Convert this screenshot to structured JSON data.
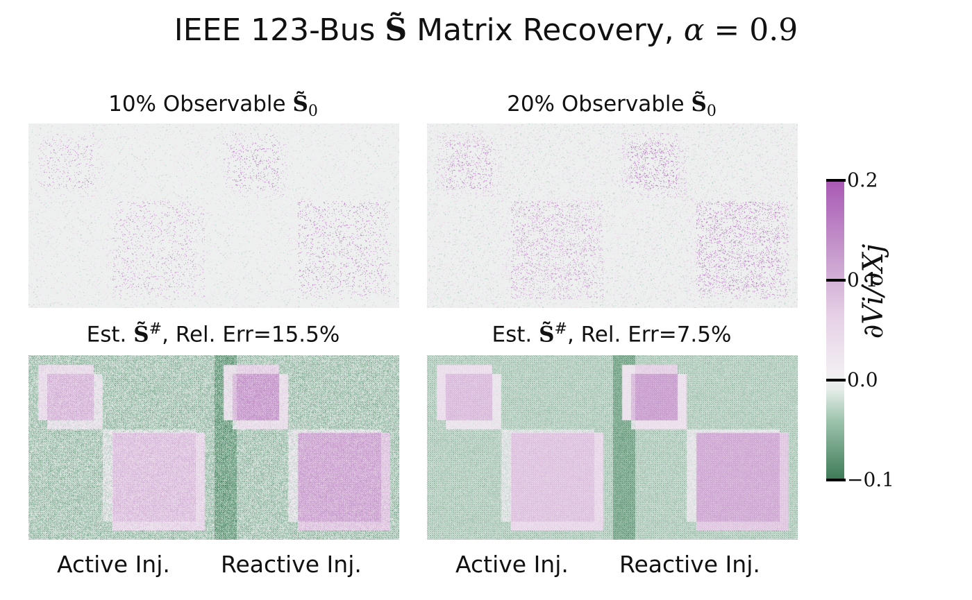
{
  "figure": {
    "title_prefix": "IEEE 123-Bus ",
    "title_symbol": "S̃",
    "title_middle": " Matrix Recovery, ",
    "title_var": "α",
    "title_eq": " = 0.9"
  },
  "panels": {
    "top_left_title": {
      "text": "10% Observable ",
      "sym": "S̃",
      "sub": "0"
    },
    "top_right_title": {
      "text": "20% Observable ",
      "sym": "S̃",
      "sub": "0"
    },
    "bottom_left_title": {
      "pre": "Est. ",
      "sym": "S̃",
      "sup": "#",
      "post": ", Rel. Err=15.5%"
    },
    "bottom_right_title": {
      "pre": "Est. ",
      "sym": "S̃",
      "sup": "#",
      "post": ", Rel. Err=7.5%"
    }
  },
  "chart_data": {
    "type": "heatmap",
    "panels": [
      {
        "title": "10% Observable S̃0",
        "observed_fraction": 0.1,
        "kind": "sparse"
      },
      {
        "title": "20% Observable S̃0",
        "observed_fraction": 0.2,
        "kind": "sparse"
      },
      {
        "title": "Est. S̃#, Rel. Err=15.5%",
        "relative_error_percent": 15.5,
        "kind": "estimate"
      },
      {
        "title": "Est. S̃#, Rel. Err=7.5%",
        "relative_error_percent": 7.5,
        "kind": "estimate"
      }
    ],
    "xlabels": [
      "Active Inj.",
      "Reactive Inj."
    ],
    "colorbar": {
      "label": "∂Vi/∂Xj",
      "range": [
        -0.1,
        0.2
      ],
      "ticks": [
        "0.2",
        "0.1",
        "0.0",
        "−0.1"
      ],
      "colors": {
        "low": "#3d7a56",
        "mid": "#f2eef2",
        "high": "#a959b5"
      }
    }
  }
}
